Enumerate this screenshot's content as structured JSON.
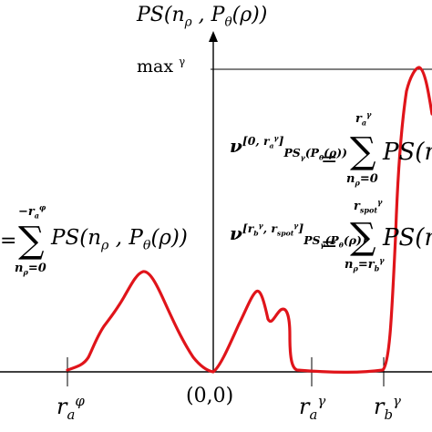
{
  "axis": {
    "y_title_html": "PS(n<sub>ρ</sub> , P<sub>θ</sub>(ρ))",
    "max_label_html": "max <sup>γ</sup>",
    "origin_label": "(0,0)"
  },
  "ticks": {
    "r_a_phi_html": "r<sub>a</sub><sup>φ</sup>",
    "r_a_gamma_html": "r<sub>a</sub><sup>γ</sup>",
    "r_b_gamma_html": "r<sub>b</sub><sup>γ</sup>"
  },
  "formulas": {
    "nu1_html": "ν<sup>[0, r<sub>a</sub><sup>γ</sup>]</sup><sub>PS<sub>γ</sub>(P<sub>θ</sub>(ρ))</sub>",
    "nu1_rhs_html": " = ",
    "nu1_upper_html": "r<sub>a</sub><sup>γ</sup>",
    "nu1_lower_html": "n<sub>ρ</sub>=0",
    "nu1_tail_html": "PS(n",
    "nu2_html": "ν<sup>[r<sub>b</sub><sup>γ</sup>, r<sub>spot</sub><sup>γ</sup>]</sup><sub>PS<sub>γ</sub>(P<sub>θ</sub>(ρ))</sub>",
    "nu2_rhs_html": " = ",
    "nu2_upper_html": "r<sub>spot</sub><sup>γ</sup>",
    "nu2_lower_html": "n<sub>ρ</sub>=r<sub>b</sub><sup>γ</sup>",
    "nu2_tail_html": "PS(n",
    "left_eq_html": "=",
    "left_upper_html": "−r<sub>a</sub><sup>φ</sup>",
    "left_lower_html": "n<sub>ρ</sub>=0",
    "left_tail_html": "PS(n<sub>ρ</sub> , P<sub>θ</sub>(ρ))",
    "sigma": "∑"
  },
  "colors": {
    "curve": "#e0141a",
    "axis": "#000000"
  }
}
